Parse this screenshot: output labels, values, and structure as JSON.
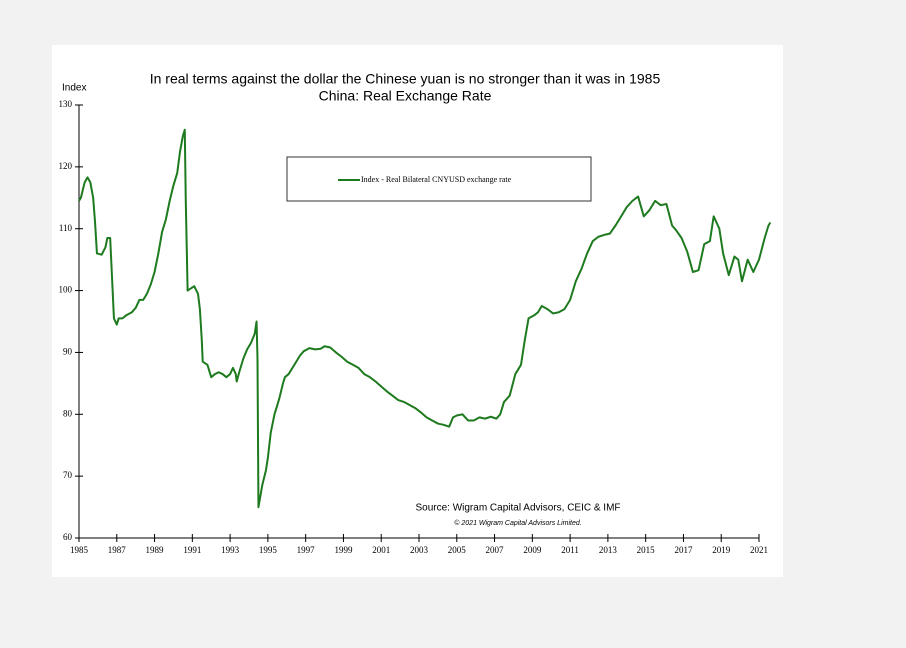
{
  "chart_data": {
    "type": "line",
    "title": "In real terms against the dollar the Chinese yuan is no stronger than it was in 1985",
    "subtitle": "China: Real Exchange Rate",
    "y_label": "Index",
    "source": "Source: Wigram Capital Advisors, CEIC & IMF",
    "copyright": "© 2021 Wigram Capital Advisors Limited.",
    "xlim": [
      1985,
      2021
    ],
    "xticks": [
      1985,
      1987,
      1989,
      1991,
      1993,
      1995,
      1997,
      1999,
      2001,
      2003,
      2005,
      2007,
      2009,
      2011,
      2013,
      2015,
      2017,
      2019,
      2021
    ],
    "ylim": [
      60,
      130
    ],
    "yticks": [
      60,
      70,
      80,
      90,
      100,
      110,
      120,
      130
    ],
    "grid": false,
    "legend": "top",
    "x": [
      1985.0,
      1985.1,
      1985.3,
      1985.45,
      1985.6,
      1985.75,
      1985.85,
      1985.95,
      1986.2,
      1986.4,
      1986.5,
      1986.65,
      1986.75,
      1986.85,
      1987.0,
      1987.1,
      1987.3,
      1987.5,
      1987.8,
      1988.0,
      1988.2,
      1988.4,
      1988.6,
      1988.8,
      1989.0,
      1989.2,
      1989.4,
      1989.6,
      1989.8,
      1990.0,
      1990.2,
      1990.35,
      1990.5,
      1990.6,
      1990.65,
      1990.75,
      1990.9,
      1991.1,
      1991.3,
      1991.4,
      1991.5,
      1991.55,
      1991.8,
      1992.0,
      1992.2,
      1992.4,
      1992.6,
      1992.8,
      1993.0,
      1993.15,
      1993.3,
      1993.35,
      1993.5,
      1993.7,
      1993.9,
      1994.1,
      1994.3,
      1994.4,
      1994.45,
      1994.5,
      1994.7,
      1994.9,
      1995.0,
      1995.15,
      1995.35,
      1995.6,
      1995.8,
      1995.9,
      1996.1,
      1996.3,
      1996.5,
      1996.7,
      1996.9,
      1997.2,
      1997.5,
      1997.8,
      1998.0,
      1998.3,
      1998.6,
      1998.9,
      1999.2,
      1999.5,
      1999.8,
      2000.1,
      2000.4,
      2000.7,
      2001.0,
      2001.3,
      2001.6,
      2001.9,
      2002.2,
      2002.5,
      2002.8,
      2003.1,
      2003.4,
      2003.7,
      2004.0,
      2004.3,
      2004.6,
      2004.8,
      2005.0,
      2005.3,
      2005.6,
      2005.9,
      2006.2,
      2006.5,
      2006.8,
      2007.1,
      2007.3,
      2007.5,
      2007.8,
      2008.1,
      2008.4,
      2008.6,
      2008.8,
      2009.1,
      2009.3,
      2009.5,
      2009.8,
      2010.1,
      2010.4,
      2010.7,
      2011.0,
      2011.3,
      2011.6,
      2011.9,
      2012.2,
      2012.5,
      2012.8,
      2013.1,
      2013.4,
      2013.7,
      2014.0,
      2014.3,
      2014.6,
      2014.9,
      2015.2,
      2015.5,
      2015.8,
      2016.1,
      2016.4,
      2016.6,
      2016.9,
      2017.2,
      2017.5,
      2017.8,
      2018.1,
      2018.4,
      2018.6,
      2018.9,
      2019.1,
      2019.4,
      2019.7,
      2019.9,
      2020.1,
      2020.4,
      2020.7,
      2021.0,
      2021.3,
      2021.5,
      2021.6
    ],
    "series": [
      {
        "name": "Index - Real Bilateral CNYUSD exchange rate",
        "color": "#1e7a1e",
        "values": [
          114.5,
          115,
          117.5,
          118.3,
          117.5,
          115,
          111,
          106,
          105.8,
          107,
          108.5,
          108.5,
          102,
          95.5,
          94.5,
          95.5,
          95.5,
          96,
          96.5,
          97.2,
          98.5,
          98.5,
          99.5,
          101,
          103,
          106,
          109.5,
          111.5,
          114.5,
          117,
          119,
          122.5,
          125,
          126,
          115,
          100,
          100.3,
          100.7,
          99.5,
          97,
          92,
          88.5,
          88,
          86,
          86.5,
          86.8,
          86.5,
          86,
          86.5,
          87.5,
          86.5,
          85.3,
          87,
          89,
          90.5,
          91.5,
          93,
          95,
          89,
          65,
          68.5,
          71,
          73,
          77,
          80,
          82.5,
          85,
          86,
          86.5,
          87.5,
          88.5,
          89.5,
          90.2,
          90.7,
          90.5,
          90.6,
          91,
          90.8,
          90,
          89.3,
          88.5,
          88,
          87.5,
          86.5,
          86,
          85.3,
          84.5,
          83.7,
          83,
          82.3,
          82,
          81.5,
          81,
          80.3,
          79.5,
          79,
          78.5,
          78.3,
          78,
          79.5,
          79.8,
          80,
          79,
          79,
          79.5,
          79.3,
          79.6,
          79.3,
          80,
          82,
          83,
          86.5,
          88,
          92,
          95.5,
          96,
          96.5,
          97.5,
          97,
          96.3,
          96.5,
          97,
          98.5,
          101.5,
          103.5,
          106,
          108,
          108.7,
          109,
          109.2,
          110.5,
          112,
          113.5,
          114.5,
          115.2,
          112,
          113,
          114.5,
          113.8,
          114,
          110.5,
          109.8,
          108.5,
          106.3,
          103,
          103.3,
          107.5,
          108,
          112,
          110,
          106,
          102.5,
          105.5,
          105,
          101.5,
          105,
          103,
          105,
          108.5,
          110.5,
          111
        ]
      }
    ]
  }
}
